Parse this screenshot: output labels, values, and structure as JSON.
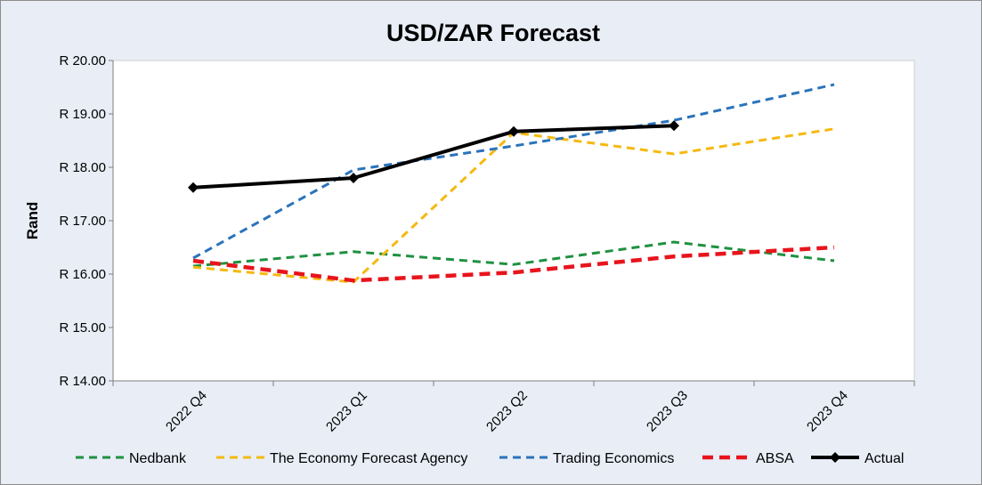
{
  "chart_data": {
    "type": "line",
    "title": "USD/ZAR Forecast",
    "xlabel": "",
    "ylabel": "Rand",
    "categories": [
      "2022 Q4",
      "2023 Q1",
      "2023 Q2",
      "2023 Q3",
      "2023 Q4"
    ],
    "ylim": [
      14.0,
      20.0
    ],
    "yticks": [
      14,
      15,
      16,
      17,
      18,
      19,
      20
    ],
    "ytick_labels": [
      "R 14.00",
      "R 15.00",
      "R 16.00",
      "R 17.00",
      "R 18.00",
      "R 19.00",
      "R 20.00"
    ],
    "grid": false,
    "legend_position": "bottom",
    "series": [
      {
        "name": "Nedbank",
        "values": [
          16.15,
          16.42,
          16.18,
          16.6,
          16.25
        ],
        "color": "#1e9140",
        "style": "dashed"
      },
      {
        "name": "The Economy Forecast Agency",
        "values": [
          16.13,
          15.85,
          18.65,
          18.25,
          18.72
        ],
        "color": "#f5b910",
        "style": "dashed"
      },
      {
        "name": "Trading Economics",
        "values": [
          16.3,
          17.95,
          18.4,
          18.88,
          19.55
        ],
        "color": "#2a73bb",
        "style": "dashed"
      },
      {
        "name": "ABSA",
        "values": [
          16.25,
          15.88,
          16.03,
          16.33,
          16.5
        ],
        "color": "#e8141c",
        "style": "dashed-bold"
      },
      {
        "name": "Actual",
        "values": [
          17.62,
          17.8,
          18.67,
          18.78,
          null
        ],
        "color": "#000000",
        "style": "solid-marker"
      }
    ]
  }
}
